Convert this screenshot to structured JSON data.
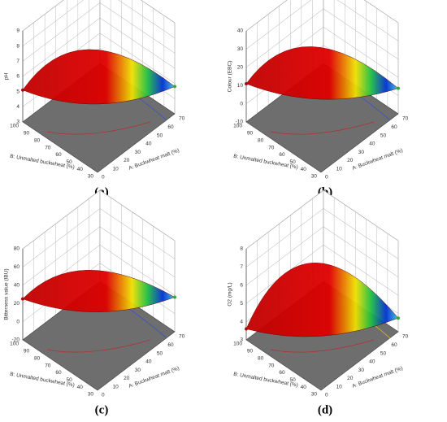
{
  "panels": [
    {
      "caption": "(a)",
      "zlabel": "pH",
      "zticks": [
        "3",
        "4",
        "5",
        "6",
        "7",
        "8",
        "9"
      ],
      "xlabel": "A: Buckwheat malt (%)",
      "xticks": [
        "0",
        "10",
        "20",
        "30",
        "40",
        "50",
        "60",
        "70"
      ],
      "ylabel": "B: Unmalted buckwheat (%)",
      "yticks": [
        "30",
        "40",
        "50",
        "60",
        "70",
        "80",
        "90",
        "100"
      ]
    },
    {
      "caption": "(b)",
      "zlabel": "Colour (EBC)",
      "zticks": [
        "-10",
        "0",
        "10",
        "20",
        "30",
        "40"
      ],
      "xlabel": "A: Buckwheat malt (%)",
      "xticks": [
        "0",
        "10",
        "20",
        "30",
        "40",
        "50",
        "60",
        "70"
      ],
      "ylabel": "B: Unmalted buckwheat (%)",
      "yticks": [
        "30",
        "40",
        "50",
        "60",
        "70",
        "80",
        "90",
        "100"
      ]
    },
    {
      "caption": "(c)",
      "zlabel": "Bitterness value (IBU)",
      "zticks": [
        "-20",
        "0",
        "20",
        "40",
        "60",
        "80"
      ],
      "xlabel": "A: Buckwheat malt (%)",
      "xticks": [
        "0",
        "10",
        "20",
        "30",
        "40",
        "50",
        "60",
        "70"
      ],
      "ylabel": "B: Unmalted buckwheat (%)",
      "yticks": [
        "30",
        "40",
        "50",
        "60",
        "70",
        "80",
        "90",
        "100"
      ]
    },
    {
      "caption": "(d)",
      "zlabel": "O2 (mg/L)",
      "zticks": [
        "3",
        "4",
        "5",
        "6",
        "7",
        "8"
      ],
      "xlabel": "A: Buckwheat malt (%)",
      "xticks": [
        "0",
        "10",
        "20",
        "30",
        "40",
        "50",
        "60",
        "70"
      ],
      "ylabel": "B: Unmalted buckwheat (%)",
      "yticks": [
        "30",
        "40",
        "50",
        "60",
        "70",
        "80",
        "90",
        "100"
      ]
    }
  ]
}
